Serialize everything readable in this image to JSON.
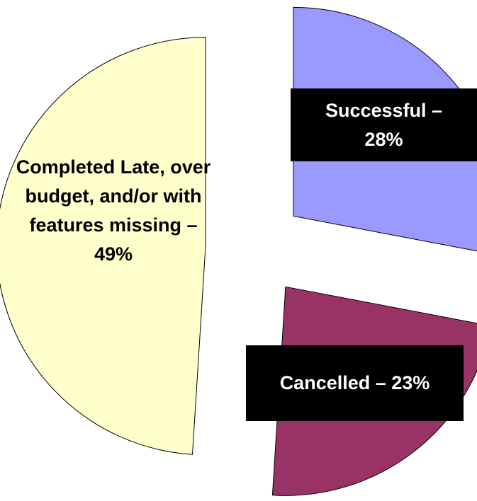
{
  "chart_data": {
    "type": "pie",
    "values": [
      28,
      23,
      49
    ],
    "value_labels": [
      "Successful – 28%",
      "Cancelled – 23%",
      "Completed Late, over budget, and/or with features missing – 49%"
    ],
    "colors": [
      "#9999ff",
      "#993366",
      "#ffffcc"
    ],
    "exploded": true
  }
}
